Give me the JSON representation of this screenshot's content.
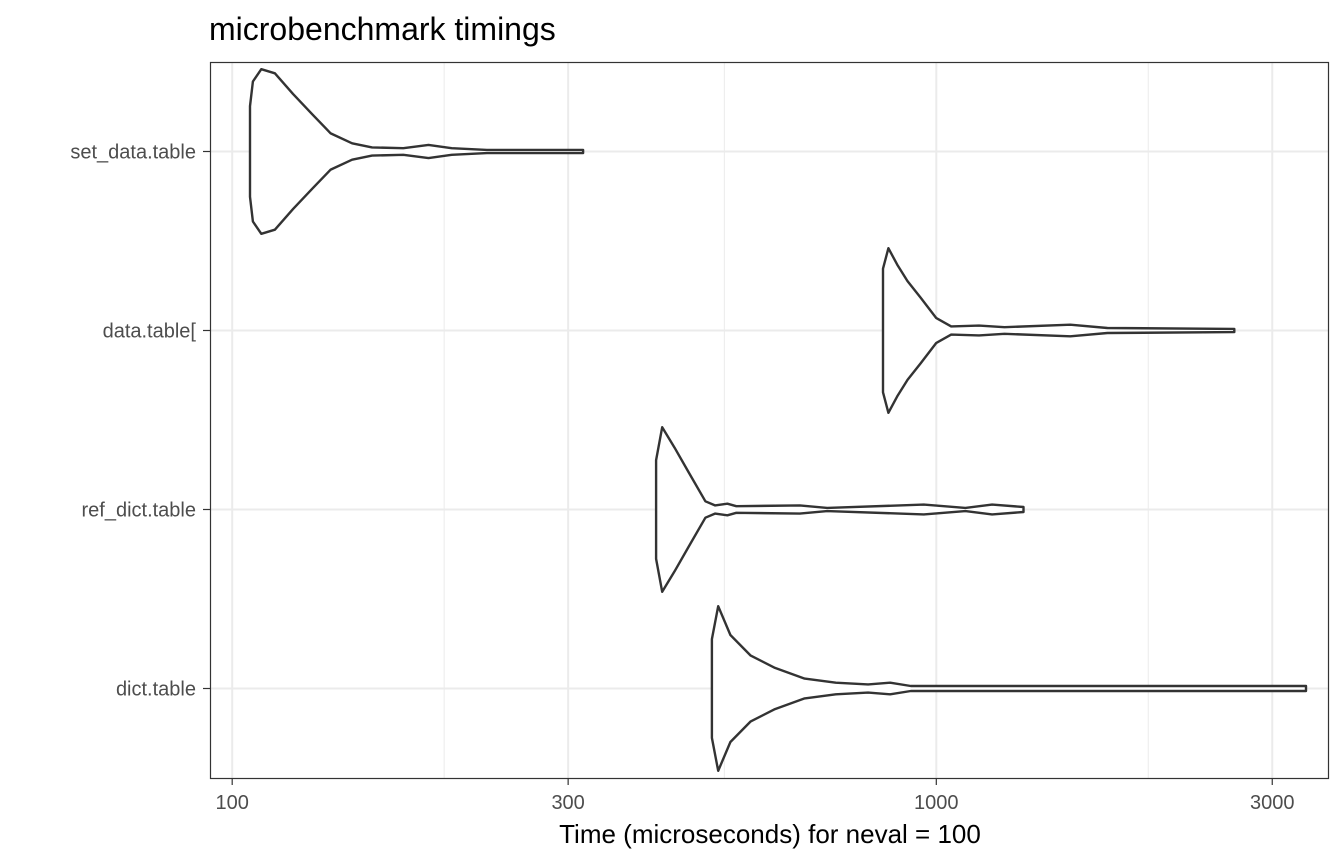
{
  "chart_data": {
    "type": "violin",
    "title": "microbenchmark timings",
    "xlabel": "Time (microseconds) for neval = 100",
    "ylabel": "",
    "x_scale": "log10",
    "xlim": [
      93,
      3600
    ],
    "x_ticks": [
      100,
      300,
      1000,
      3000
    ],
    "x_tick_labels": [
      "100",
      "300",
      "1000",
      "3000"
    ],
    "x_minor_gridlines": [
      200,
      500,
      2000
    ],
    "grid": true,
    "legend": "none",
    "categories": [
      "set_data.table",
      "data.table[",
      "ref_dict.table",
      "dict.table"
    ],
    "series": [
      {
        "name": "set_data.table",
        "min": 106,
        "max": 315,
        "profile": [
          [
            106,
            0.55
          ],
          [
            107,
            0.85
          ],
          [
            110,
            1.0
          ],
          [
            115,
            0.95
          ],
          [
            122,
            0.7
          ],
          [
            130,
            0.45
          ],
          [
            138,
            0.22
          ],
          [
            148,
            0.1
          ],
          [
            158,
            0.05
          ],
          [
            175,
            0.04
          ],
          [
            190,
            0.08
          ],
          [
            205,
            0.04
          ],
          [
            230,
            0.02
          ],
          [
            315,
            0.02
          ]
        ]
      },
      {
        "name": "data.table[",
        "min": 840,
        "max": 2650,
        "profile": [
          [
            840,
            0.75
          ],
          [
            855,
            1.0
          ],
          [
            880,
            0.8
          ],
          [
            910,
            0.6
          ],
          [
            950,
            0.4
          ],
          [
            1000,
            0.15
          ],
          [
            1050,
            0.05
          ],
          [
            1150,
            0.06
          ],
          [
            1250,
            0.04
          ],
          [
            1550,
            0.07
          ],
          [
            1750,
            0.03
          ],
          [
            2650,
            0.02
          ]
        ]
      },
      {
        "name": "ref_dict.table",
        "min": 400,
        "max": 1330,
        "profile": [
          [
            400,
            0.6
          ],
          [
            408,
            1.0
          ],
          [
            425,
            0.75
          ],
          [
            445,
            0.45
          ],
          [
            470,
            0.1
          ],
          [
            485,
            0.05
          ],
          [
            505,
            0.07
          ],
          [
            520,
            0.04
          ],
          [
            640,
            0.05
          ],
          [
            700,
            0.02
          ],
          [
            960,
            0.06
          ],
          [
            1100,
            0.02
          ],
          [
            1200,
            0.06
          ],
          [
            1330,
            0.03
          ]
        ]
      },
      {
        "name": "dict.table",
        "min": 480,
        "max": 3350,
        "profile": [
          [
            480,
            0.6
          ],
          [
            490,
            1.0
          ],
          [
            510,
            0.65
          ],
          [
            545,
            0.4
          ],
          [
            590,
            0.25
          ],
          [
            650,
            0.12
          ],
          [
            720,
            0.07
          ],
          [
            800,
            0.05
          ],
          [
            860,
            0.07
          ],
          [
            920,
            0.03
          ],
          [
            1500,
            0.03
          ],
          [
            3000,
            0.03
          ],
          [
            3350,
            0.03
          ]
        ]
      }
    ]
  }
}
